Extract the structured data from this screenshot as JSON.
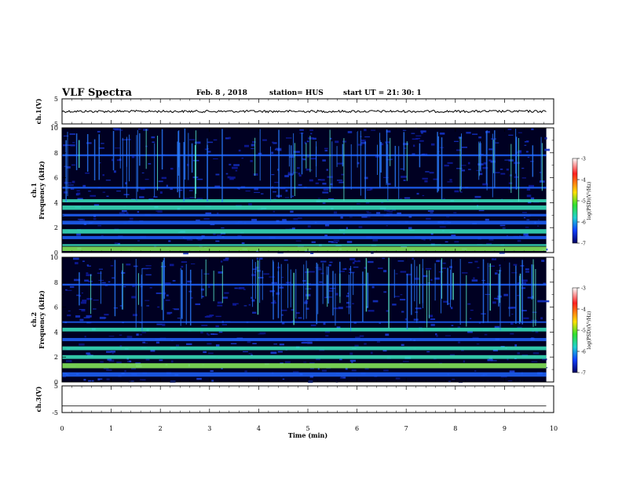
{
  "header": {
    "title": "VLF Spectra",
    "date": "Feb. 8  , 2018",
    "station": "station= HUS",
    "start": "start  UT  =   21: 30: 1"
  },
  "chart_data": [
    {
      "type": "line",
      "name": "ch.1 waveform",
      "ylabel": "ch.1(V)",
      "ylim": [
        -5,
        5
      ],
      "yticks": [
        "5",
        "-5"
      ],
      "xlim": [
        0,
        9.85
      ],
      "level": 0
    },
    {
      "type": "heatmap",
      "name": "ch.1 spectrogram",
      "ylabel": [
        "ch.1",
        "Frequency  (kHz)"
      ],
      "ylim": [
        0,
        10
      ],
      "yticks": [
        "0",
        "2",
        "4",
        "6",
        "8",
        "10"
      ],
      "xlim": [
        0,
        9.85
      ],
      "colorbar": {
        "label": "log(PSD)(V²/Hz)",
        "range": [
          -7,
          -3
        ],
        "ticks": [
          "-3",
          "-4",
          "-5",
          "-6",
          "-7"
        ]
      }
    },
    {
      "type": "heatmap",
      "name": "ch.2 spectrogram",
      "ylabel": [
        "ch.2",
        "Frequency  (kHz)"
      ],
      "ylim": [
        0,
        10
      ],
      "yticks": [
        "0",
        "2",
        "4",
        "6",
        "8",
        "10"
      ],
      "xlim": [
        0,
        9.85
      ],
      "colorbar": {
        "label": "log(PSD)(V²/Hz)",
        "range": [
          -7,
          -3
        ],
        "ticks": [
          "-3",
          "-4",
          "-5",
          "-6",
          "-7"
        ]
      }
    },
    {
      "type": "line",
      "name": "ch.3 waveform",
      "ylabel": "ch.3(V)",
      "ylim": [
        -5,
        5
      ],
      "yticks": [
        "5",
        "-5"
      ],
      "xlim": [
        0,
        9.85
      ],
      "level": -2.5
    }
  ],
  "xaxis": {
    "label": "Time  (min)",
    "range": [
      0,
      10
    ],
    "ticks": [
      "0",
      "1",
      "2",
      "3",
      "4",
      "5",
      "6",
      "7",
      "8",
      "9",
      "10"
    ]
  },
  "colors": {
    "background": "#000022",
    "low": "#0a1aa0",
    "mid": "#1e64ff",
    "band": "#39e8c0",
    "high": "#8af05a"
  }
}
